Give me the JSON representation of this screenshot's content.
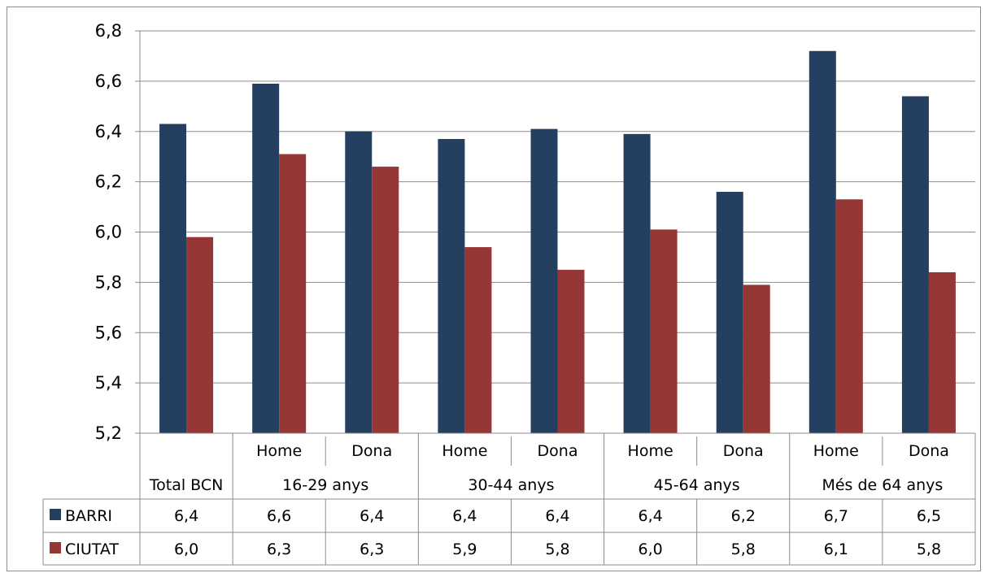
{
  "chart_data": {
    "type": "bar",
    "ylim": [
      5.2,
      6.8
    ],
    "yticks": [
      "5,2",
      "5,4",
      "5,6",
      "5,8",
      "6,0",
      "6,2",
      "6,4",
      "6,6",
      "6,8"
    ],
    "grid": true,
    "categories": [
      {
        "sub": "",
        "group": "Total BCN"
      },
      {
        "sub": "Home",
        "group": "16-29 anys"
      },
      {
        "sub": "Dona",
        "group": "16-29 anys"
      },
      {
        "sub": "Home",
        "group": "30-44 anys"
      },
      {
        "sub": "Dona",
        "group": "30-44 anys"
      },
      {
        "sub": "Home",
        "group": "45-64 anys"
      },
      {
        "sub": "Dona",
        "group": "45-64 anys"
      },
      {
        "sub": "Home",
        "group": "Més de 64 anys"
      },
      {
        "sub": "Dona",
        "group": "Més de 64 anys"
      }
    ],
    "groups": [
      "Total BCN",
      "16-29 anys",
      "30-44 anys",
      "45-64 anys",
      "Més de 64 anys"
    ],
    "series": [
      {
        "name": "BARRI",
        "color": "#243F60",
        "values": [
          6.43,
          6.59,
          6.4,
          6.37,
          6.41,
          6.39,
          6.16,
          6.72,
          6.54
        ],
        "labels": [
          "6,4",
          "6,6",
          "6,4",
          "6,4",
          "6,4",
          "6,4",
          "6,2",
          "6,7",
          "6,5"
        ]
      },
      {
        "name": "CIUTAT",
        "color": "#953735",
        "values": [
          5.98,
          6.31,
          6.26,
          5.94,
          5.85,
          6.01,
          5.79,
          6.13,
          5.84
        ],
        "labels": [
          "6,0",
          "6,3",
          "6,3",
          "5,9",
          "5,8",
          "6,0",
          "5,8",
          "6,1",
          "5,8"
        ]
      }
    ]
  }
}
